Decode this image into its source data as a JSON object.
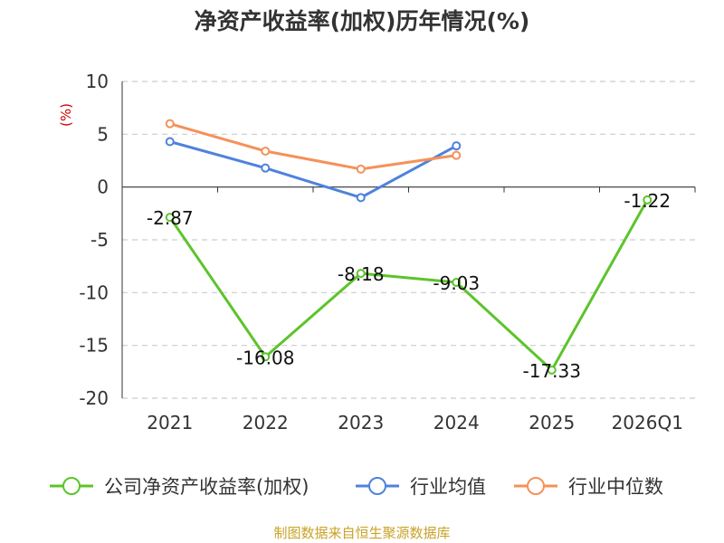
{
  "chart_data": {
    "type": "line",
    "title": "净资产收益率(加权)历年情况(%)",
    "ylabel": "(%)",
    "categories": [
      "2021",
      "2022",
      "2023",
      "2024",
      "2025",
      "2026Q1"
    ],
    "ylim": [
      -20,
      10
    ],
    "yticks": [
      10,
      5,
      0,
      -5,
      -10,
      -15,
      -20
    ],
    "grid": true,
    "legend_position": "bottom",
    "series": [
      {
        "name": "公司净资产收益率(加权)",
        "color": "#5cc42b",
        "show_labels": true,
        "values": [
          -2.87,
          -16.08,
          -8.18,
          -9.03,
          -17.33,
          -1.22
        ],
        "labels": [
          "-2.87",
          "-16.08",
          "-8.18",
          "-9.03",
          "-17.33",
          "-1.22"
        ]
      },
      {
        "name": "行业均值",
        "color": "#4f82dc",
        "show_labels": false,
        "values": [
          4.3,
          1.8,
          -1.0,
          3.9,
          null,
          null
        ]
      },
      {
        "name": "行业中位数",
        "color": "#f5915a",
        "show_labels": false,
        "values": [
          6.0,
          3.4,
          1.7,
          3.0,
          null,
          null
        ]
      }
    ]
  },
  "source": "制图数据来自恒生聚源数据库"
}
